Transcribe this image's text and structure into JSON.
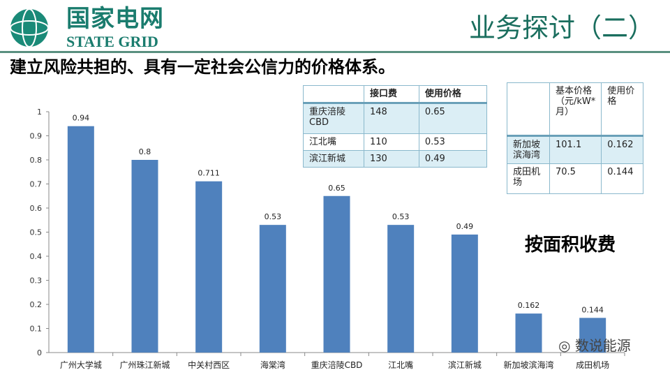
{
  "header": {
    "logo_cn": "国家电网",
    "logo_en": "STATE GRID",
    "title": "业务探讨（二）"
  },
  "subtitle": "建立风险共担的、具有一定社会公信力的价格体系。",
  "table1": {
    "headers": [
      "",
      "接口费",
      "使用价格"
    ],
    "rows": [
      [
        "重庆涪陵CBD",
        "148",
        "0.65"
      ],
      [
        "江北嘴",
        "110",
        "0.53"
      ],
      [
        "滨江新城",
        "130",
        "0.49"
      ]
    ]
  },
  "table2": {
    "headers": [
      "",
      "基本价格（元/kW*月）",
      "使用价格"
    ],
    "rows": [
      [
        "新加坡滨海湾",
        "101.1",
        "0.162"
      ],
      [
        "成田机场",
        "70.5",
        "0.144"
      ]
    ]
  },
  "note": "按面积收费",
  "watermark": "数说能源",
  "chart_data": {
    "type": "bar",
    "categories": [
      "广州大学城",
      "广州珠江新城",
      "中关村西区",
      "海棠湾",
      "重庆涪陵CBD",
      "江北嘴",
      "滨江新城",
      "新加坡滨海湾",
      "成田机场"
    ],
    "values": [
      0.94,
      0.8,
      0.711,
      0.53,
      0.65,
      0.53,
      0.49,
      0.162,
      0.144
    ],
    "ylim": [
      0,
      1
    ],
    "yticks": [
      "0",
      "0.1",
      "0.2",
      "0.3",
      "0.4",
      "0.5",
      "0.6",
      "0.7",
      "0.8",
      "0.9",
      "1"
    ],
    "bar_color": "#4f81bd",
    "grid": false
  }
}
